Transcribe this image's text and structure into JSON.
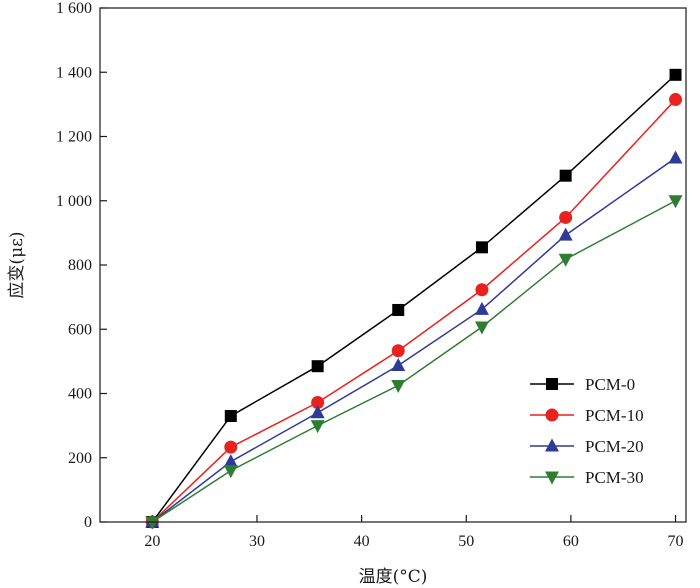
{
  "chart_data": {
    "type": "line",
    "xlabel": "温度(°C)",
    "ylabel": "应变(με)",
    "x": [
      20,
      27.5,
      35.8,
      43.5,
      51.5,
      59.5,
      70
    ],
    "xlim": [
      15,
      71
    ],
    "ylim": [
      0,
      1600
    ],
    "xticks": [
      20,
      30,
      40,
      50,
      60,
      70
    ],
    "xtick_labels": [
      "20",
      "30",
      "40",
      "50",
      "60",
      "70"
    ],
    "yticks": [
      0,
      200,
      400,
      600,
      800,
      1000,
      1200,
      1400,
      1600
    ],
    "ytick_labels": [
      "0",
      "200",
      "400",
      "600",
      "800",
      "1 000",
      "1 200",
      "1 400",
      "1 600"
    ],
    "grid": false,
    "legend_position": "bottom-right",
    "series": [
      {
        "name": "PCM-0",
        "color": "#000000",
        "marker": "square",
        "values": [
          0,
          330,
          485,
          660,
          855,
          1078,
          1392
        ]
      },
      {
        "name": "PCM-10",
        "color": "#e8221f",
        "marker": "circle",
        "values": [
          0,
          233,
          372,
          533,
          723,
          948,
          1315
        ]
      },
      {
        "name": "PCM-20",
        "color": "#2e3a96",
        "marker": "triangle-up",
        "values": [
          0,
          188,
          340,
          487,
          662,
          893,
          1133
        ]
      },
      {
        "name": "PCM-30",
        "color": "#2e7d32",
        "marker": "triangle-down",
        "values": [
          0,
          160,
          300,
          425,
          607,
          818,
          1000
        ]
      }
    ]
  }
}
